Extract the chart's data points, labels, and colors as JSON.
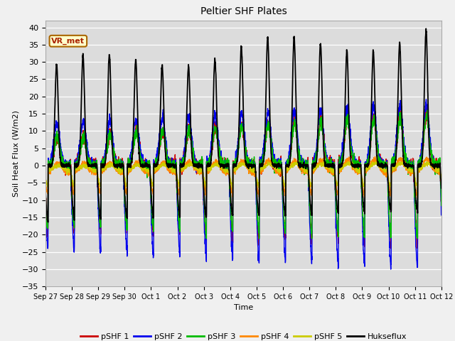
{
  "title": "Peltier SHF Plates",
  "xlabel": "Time",
  "ylabel": "Soil Heat Flux (W/m2)",
  "ylim": [
    -35,
    42
  ],
  "yticks": [
    -35,
    -30,
    -25,
    -20,
    -15,
    -10,
    -5,
    0,
    5,
    10,
    15,
    20,
    25,
    30,
    35,
    40
  ],
  "series_names": [
    "pSHF 1",
    "pSHF 2",
    "pSHF 3",
    "pSHF 4",
    "pSHF 5",
    "Hukseflux"
  ],
  "series_colors": [
    "#cc0000",
    "#0000ee",
    "#00bb00",
    "#ff8800",
    "#cccc00",
    "#000000"
  ],
  "annotation_text": "VR_met",
  "annotation_bg": "#ffffcc",
  "annotation_border": "#aa6600",
  "plot_bg": "#dcdcdc",
  "fig_bg": "#f0f0f0",
  "xtick_labels": [
    "Sep 27",
    "Sep 28",
    "Sep 29",
    "Sep 30",
    "Oct 1",
    "Oct 2",
    "Oct 3",
    "Oct 4",
    "Oct 5",
    "Oct 6",
    "Oct 7",
    "Oct 8",
    "Oct 9",
    "Oct 10",
    "Oct 11",
    "Oct 12"
  ],
  "xtick_positions": [
    0,
    1,
    2,
    3,
    4,
    5,
    6,
    7,
    8,
    9,
    10,
    11,
    12,
    13,
    14,
    15
  ]
}
